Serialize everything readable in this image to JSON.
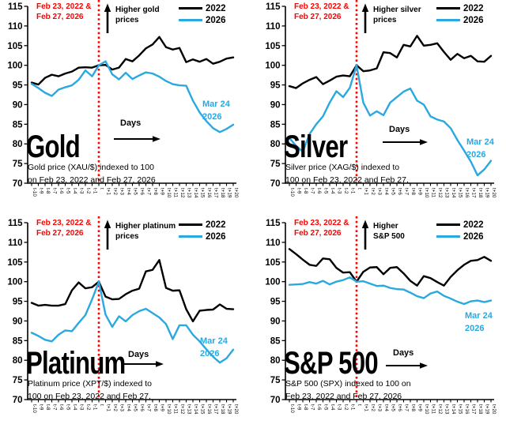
{
  "page": {
    "background": "#ffffff"
  },
  "colors": {
    "line_2022": "#000000",
    "line_2026": "#29a9e0",
    "event_red": "#ff0000",
    "axis": "#000000",
    "text": "#000000"
  },
  "chart_data": [
    {
      "type": "line",
      "title": "Gold",
      "subtitle_lines": [
        "Gold price (XAU/$) indexed to 100",
        "on Feb 23, 2022 and Feb 27, 2026"
      ],
      "xlabel": "Days",
      "ylim": [
        70,
        115
      ],
      "y_ticks": [
        115,
        110,
        105,
        100,
        95,
        90,
        85,
        80,
        75,
        70
      ],
      "grid": false,
      "legend_position": "top-right",
      "event_x_index": 10,
      "x": [
        "t-10",
        "t-9",
        "t-8",
        "t-7",
        "t-6",
        "t-5",
        "t-4",
        "t-3",
        "t-2",
        "t-1",
        "t",
        "t+1",
        "t+2",
        "t+3",
        "t+4",
        "t+5",
        "t+6",
        "t+7",
        "t+8",
        "t+9",
        "t+10",
        "t+11",
        "t+12",
        "t+13",
        "t+14",
        "t+15",
        "t+16",
        "t+17",
        "t+18",
        "t+19",
        "t+20"
      ],
      "series": [
        {
          "name": "2022",
          "color": "#000000",
          "values": [
            95.6,
            95.1,
            96.8,
            97.6,
            97.2,
            97.9,
            98.4,
            99.4,
            99.5,
            99.4,
            100.0,
            100.1,
            98.9,
            99.4,
            101.6,
            101.0,
            102.5,
            104.3,
            105.3,
            107.2,
            104.6,
            104.0,
            104.4,
            100.8,
            101.5,
            100.9,
            101.6,
            100.4,
            100.9,
            101.7,
            102.0
          ]
        },
        {
          "name": "2026",
          "color": "#29a9e0",
          "values": [
            95.3,
            94.2,
            93.0,
            92.2,
            93.8,
            94.4,
            94.9,
            96.3,
            98.7,
            97.2,
            100.0,
            101.0,
            97.7,
            96.4,
            98.1,
            96.5,
            97.4,
            98.2,
            97.9,
            97.1,
            96.0,
            95.2,
            94.9,
            94.8,
            91.0,
            88.0,
            85.8,
            84.0,
            83.0,
            83.8,
            84.9
          ]
        }
      ],
      "annotations": {
        "event_lines": [
          "Feb 23, 2022 &",
          "Feb 27, 2026"
        ],
        "higher_lines": [
          "Higher gold",
          "prices"
        ],
        "days_label": "Days",
        "endpoint_lines": [
          "Mar 24",
          "2026"
        ]
      }
    },
    {
      "type": "line",
      "title": "Silver",
      "subtitle_lines": [
        "Silver price (XAG/$) indexed to",
        "100 on Feb 23, 2022 and Feb 27,"
      ],
      "xlabel": "Days",
      "ylim": [
        70,
        115
      ],
      "y_ticks": [
        115,
        110,
        105,
        100,
        95,
        90,
        85,
        80,
        75,
        70
      ],
      "grid": false,
      "legend_position": "top-right",
      "event_x_index": 10,
      "x": [
        "t-10",
        "t-9",
        "t-8",
        "t-7",
        "t-6",
        "t-5",
        "t-4",
        "t-3",
        "t-2",
        "t-1",
        "t",
        "t+1",
        "t+2",
        "t+3",
        "t+4",
        "t+5",
        "t+6",
        "t+7",
        "t+8",
        "t+9",
        "t+10",
        "t+11",
        "t+12",
        "t+13",
        "t+14",
        "t+15",
        "t+16",
        "t+17",
        "t+18",
        "t+19",
        "t+20"
      ],
      "series": [
        {
          "name": "2022",
          "color": "#000000",
          "values": [
            94.7,
            94.2,
            95.4,
            96.3,
            97.0,
            95.2,
            96.1,
            97.1,
            97.4,
            97.2,
            100.0,
            98.5,
            98.7,
            99.2,
            103.3,
            103.1,
            102.0,
            105.2,
            104.8,
            107.5,
            105.0,
            105.2,
            105.6,
            103.4,
            101.4,
            102.9,
            101.8,
            102.4,
            101.0,
            100.9,
            102.4
          ]
        },
        {
          "name": "2026",
          "color": "#29a9e0",
          "values": [
            81.5,
            79.5,
            78.0,
            82.5,
            85.0,
            87.0,
            90.5,
            93.4,
            91.9,
            94.3,
            100.0,
            90.5,
            87.2,
            88.3,
            87.3,
            90.5,
            91.9,
            93.3,
            94.1,
            91.0,
            90.0,
            87.0,
            86.2,
            85.7,
            84.0,
            81.0,
            78.3,
            75.5,
            72.0,
            73.5,
            75.7
          ]
        }
      ],
      "annotations": {
        "event_lines": [
          "Feb 23, 2022 &",
          "Feb 27, 2026"
        ],
        "higher_lines": [
          "Higher silver",
          "prices"
        ],
        "days_label": "Days",
        "endpoint_lines": [
          "Mar 24",
          "2026"
        ]
      }
    },
    {
      "type": "line",
      "title": "Platinum",
      "subtitle_lines": [
        "Platinum price (XPT/$) indexed to",
        "100 on Feb 23, 2022 and Feb 27,"
      ],
      "xlabel": "Days",
      "ylim": [
        70,
        115
      ],
      "y_ticks": [
        115,
        110,
        105,
        100,
        95,
        90,
        85,
        80,
        75,
        70
      ],
      "grid": false,
      "legend_position": "top-right",
      "event_x_index": 10,
      "x": [
        "t-10",
        "t-9",
        "t-8",
        "t-7",
        "t-6",
        "t-5",
        "t-4",
        "t-3",
        "t-2",
        "t-1",
        "t",
        "t+1",
        "t+2",
        "t+3",
        "t+4",
        "t+5",
        "t+6",
        "t+7",
        "t+8",
        "t+9",
        "t+10",
        "t+11",
        "t+12",
        "t+13",
        "t+14",
        "t+15",
        "t+16",
        "t+17",
        "t+18",
        "t+19",
        "t+20"
      ],
      "series": [
        {
          "name": "2022",
          "color": "#000000",
          "values": [
            94.6,
            93.9,
            94.1,
            93.9,
            93.9,
            94.3,
            97.8,
            99.8,
            98.3,
            98.6,
            100.0,
            96.2,
            95.5,
            95.6,
            96.8,
            97.7,
            98.2,
            102.6,
            103.0,
            105.5,
            98.4,
            97.7,
            97.8,
            93.0,
            89.9,
            92.6,
            92.8,
            92.9,
            94.2,
            93.1,
            93.0
          ]
        },
        {
          "name": "2026",
          "color": "#29a9e0",
          "values": [
            87.0,
            86.2,
            85.2,
            84.8,
            86.5,
            87.6,
            87.4,
            89.5,
            91.5,
            95.5,
            100.0,
            91.6,
            88.5,
            91.2,
            89.9,
            91.5,
            92.5,
            93.1,
            92.0,
            90.9,
            89.2,
            85.4,
            88.9,
            88.9,
            86.5,
            84.8,
            82.8,
            80.9,
            79.4,
            80.5,
            82.7
          ]
        }
      ],
      "annotations": {
        "event_lines": [
          "Feb 23, 2022 &",
          "Feb 27, 2026"
        ],
        "higher_lines": [
          "Higher platinum",
          "prices"
        ],
        "days_label": "Days",
        "endpoint_lines": [
          "Mar 24",
          "2026"
        ]
      }
    },
    {
      "type": "line",
      "title": "S&P 500",
      "subtitle_lines": [
        "S&P 500 (SPX) indexed to 100 on",
        "Feb 23, 2022 and Feb 27, 2026"
      ],
      "xlabel": "Days",
      "ylim": [
        70,
        115
      ],
      "y_ticks": [
        115,
        110,
        105,
        100,
        95,
        90,
        85,
        80,
        75,
        70
      ],
      "grid": false,
      "legend_position": "top-right",
      "event_x_index": 10,
      "x": [
        "t-10",
        "t-9",
        "t-8",
        "t-7",
        "t-6",
        "t-5",
        "t-4",
        "t-3",
        "t-2",
        "t-1",
        "t",
        "t+1",
        "t+2",
        "t+3",
        "t+4",
        "t+5",
        "t+6",
        "t+7",
        "t+8",
        "t+9",
        "t+10",
        "t+11",
        "t+12",
        "t+13",
        "t+14",
        "t+15",
        "t+16",
        "t+17",
        "t+18",
        "t+19",
        "t+20"
      ],
      "series": [
        {
          "name": "2022",
          "color": "#000000",
          "values": [
            108.3,
            107.0,
            105.6,
            104.3,
            104.0,
            105.9,
            105.7,
            103.5,
            102.3,
            102.4,
            100.0,
            102.5,
            103.6,
            103.7,
            101.9,
            103.5,
            103.7,
            102.1,
            100.2,
            99.0,
            101.4,
            100.9,
            99.9,
            99.0,
            101.2,
            102.9,
            104.3,
            105.3,
            105.5,
            106.3,
            105.3
          ]
        },
        {
          "name": "2026",
          "color": "#29a9e0",
          "values": [
            99.2,
            99.3,
            99.4,
            99.9,
            99.5,
            100.2,
            99.3,
            100.0,
            100.4,
            101.1,
            100.0,
            100.1,
            99.5,
            98.9,
            99.0,
            98.4,
            98.1,
            98.0,
            97.2,
            96.3,
            95.8,
            97.0,
            97.5,
            96.4,
            95.7,
            94.9,
            94.3,
            95.0,
            95.2,
            94.8,
            95.2
          ]
        }
      ],
      "annotations": {
        "event_lines": [
          "Feb 23, 2022 &",
          "Feb 27, 2026"
        ],
        "higher_lines": [
          "Higher",
          "S&P 500"
        ],
        "days_label": "Days",
        "endpoint_lines": [
          "Mar 24",
          "2026"
        ]
      }
    }
  ]
}
